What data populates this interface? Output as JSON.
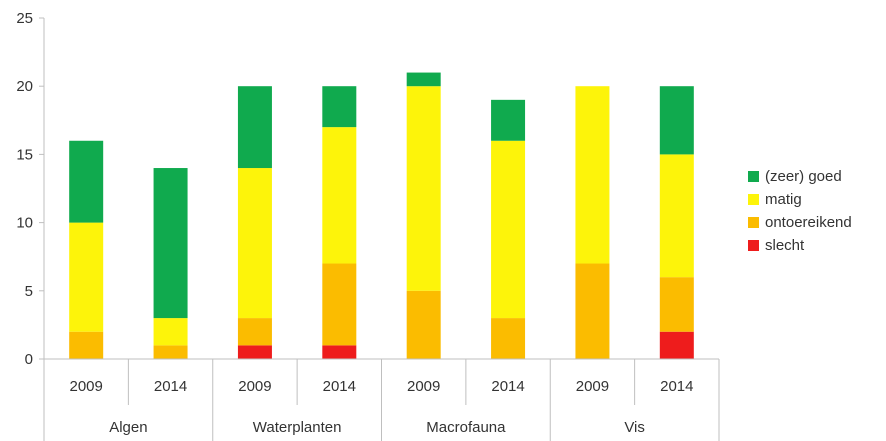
{
  "chart_data": {
    "type": "bar",
    "stacked": true,
    "groups": [
      "Algen",
      "Waterplanten",
      "Macrofauna",
      "Vis"
    ],
    "categories": [
      "2009",
      "2014",
      "2009",
      "2014",
      "2009",
      "2014",
      "2009",
      "2014"
    ],
    "series": [
      {
        "name": "slecht",
        "color": "#ee1c1c",
        "values": [
          0,
          0,
          1,
          1,
          0,
          0,
          0,
          2
        ]
      },
      {
        "name": "ontoereikend",
        "color": "#fbbc00",
        "values": [
          2,
          1,
          2,
          6,
          5,
          3,
          7,
          4
        ]
      },
      {
        "name": "matig",
        "color": "#fdf40a",
        "values": [
          8,
          2,
          11,
          10,
          15,
          13,
          13,
          9
        ]
      },
      {
        "name": "(zeer) goed",
        "color": "#10aa4e",
        "values": [
          6,
          11,
          6,
          3,
          1,
          3,
          0,
          5
        ]
      }
    ],
    "legend_order": [
      "(zeer) goed",
      "matig",
      "ontoereikend",
      "slecht"
    ],
    "yticks": [
      0,
      5,
      10,
      15,
      20,
      25
    ],
    "ylim": [
      0,
      25
    ],
    "grid": false,
    "legend_position": "right"
  }
}
